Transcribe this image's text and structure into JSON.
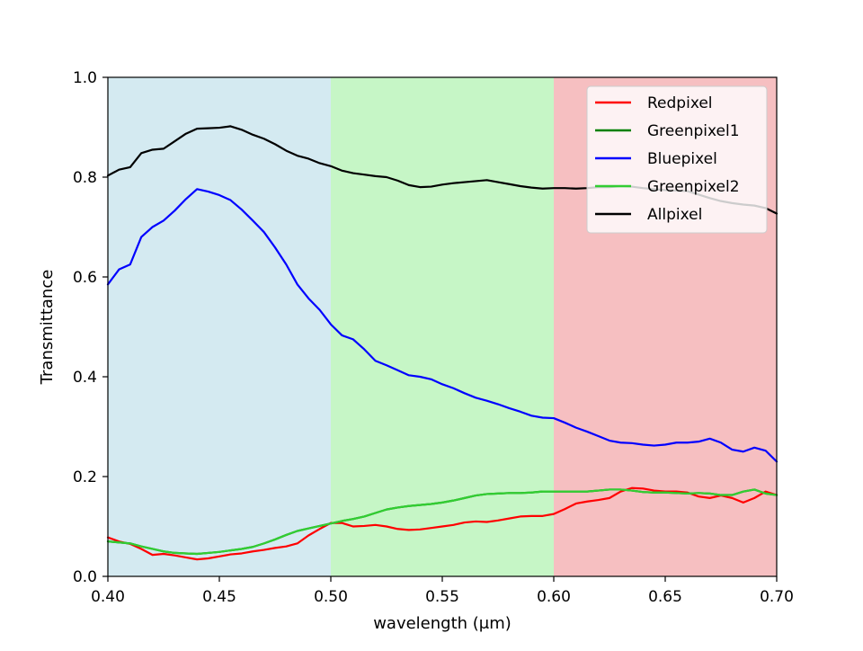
{
  "chart_data": {
    "type": "line",
    "title": "",
    "xlabel": "wavelength (μm)",
    "ylabel": "Transmittance",
    "xlim": [
      0.4,
      0.7
    ],
    "ylim": [
      0.0,
      1.0
    ],
    "xticks": [
      0.4,
      0.45,
      0.5,
      0.55,
      0.6,
      0.65,
      0.7
    ],
    "xtick_labels": [
      "0.40",
      "0.45",
      "0.50",
      "0.55",
      "0.60",
      "0.65",
      "0.70"
    ],
    "yticks": [
      0.0,
      0.2,
      0.4,
      0.6,
      0.8,
      1.0
    ],
    "ytick_labels": [
      "0.0",
      "0.2",
      "0.4",
      "0.6",
      "0.8",
      "1.0"
    ],
    "grid": false,
    "legend_position": "top-right",
    "bands": [
      {
        "x0": 0.4,
        "x1": 0.5,
        "color": "#d4eaf1"
      },
      {
        "x0": 0.5,
        "x1": 0.6,
        "color": "#c6f6c6"
      },
      {
        "x0": 0.6,
        "x1": 0.7,
        "color": "#f6bfc1"
      }
    ],
    "x": [
      0.4,
      0.405,
      0.41,
      0.415,
      0.42,
      0.425,
      0.43,
      0.435,
      0.44,
      0.445,
      0.45,
      0.455,
      0.46,
      0.465,
      0.47,
      0.475,
      0.48,
      0.485,
      0.49,
      0.495,
      0.5,
      0.505,
      0.51,
      0.515,
      0.52,
      0.525,
      0.53,
      0.535,
      0.54,
      0.545,
      0.55,
      0.555,
      0.56,
      0.565,
      0.57,
      0.575,
      0.58,
      0.585,
      0.59,
      0.595,
      0.6,
      0.605,
      0.61,
      0.615,
      0.62,
      0.625,
      0.63,
      0.635,
      0.64,
      0.645,
      0.65,
      0.655,
      0.66,
      0.665,
      0.67,
      0.675,
      0.68,
      0.685,
      0.69,
      0.695,
      0.7
    ],
    "series": [
      {
        "name": "Redpixel",
        "color": "#ff0000",
        "values": [
          0.078,
          0.07,
          0.065,
          0.055,
          0.043,
          0.045,
          0.042,
          0.038,
          0.034,
          0.036,
          0.04,
          0.044,
          0.046,
          0.05,
          0.053,
          0.057,
          0.06,
          0.066,
          0.082,
          0.095,
          0.107,
          0.107,
          0.1,
          0.101,
          0.103,
          0.1,
          0.095,
          0.093,
          0.094,
          0.097,
          0.1,
          0.103,
          0.108,
          0.11,
          0.109,
          0.112,
          0.116,
          0.12,
          0.121,
          0.121,
          0.125,
          0.135,
          0.146,
          0.15,
          0.153,
          0.157,
          0.17,
          0.177,
          0.176,
          0.172,
          0.17,
          0.17,
          0.168,
          0.16,
          0.157,
          0.162,
          0.157,
          0.148,
          0.157,
          0.17,
          0.163
        ]
      },
      {
        "name": "Greenpixel1",
        "color": "#008000",
        "values": [
          0.07,
          0.068,
          0.066,
          0.06,
          0.055,
          0.05,
          0.047,
          0.046,
          0.045,
          0.047,
          0.049,
          0.052,
          0.055,
          0.059,
          0.066,
          0.074,
          0.083,
          0.091,
          0.096,
          0.101,
          0.106,
          0.111,
          0.115,
          0.12,
          0.127,
          0.134,
          0.138,
          0.141,
          0.143,
          0.145,
          0.148,
          0.152,
          0.157,
          0.162,
          0.165,
          0.166,
          0.167,
          0.167,
          0.168,
          0.17,
          0.17,
          0.17,
          0.17,
          0.17,
          0.172,
          0.174,
          0.174,
          0.172,
          0.169,
          0.168,
          0.168,
          0.167,
          0.166,
          0.167,
          0.166,
          0.163,
          0.163,
          0.17,
          0.174,
          0.166,
          0.163
        ]
      },
      {
        "name": "Bluepixel",
        "color": "#0000ff",
        "values": [
          0.585,
          0.615,
          0.625,
          0.68,
          0.7,
          0.713,
          0.733,
          0.756,
          0.776,
          0.771,
          0.764,
          0.754,
          0.735,
          0.713,
          0.69,
          0.659,
          0.625,
          0.585,
          0.557,
          0.534,
          0.505,
          0.483,
          0.475,
          0.455,
          0.432,
          0.423,
          0.413,
          0.403,
          0.4,
          0.395,
          0.385,
          0.377,
          0.367,
          0.358,
          0.352,
          0.345,
          0.337,
          0.33,
          0.322,
          0.318,
          0.317,
          0.308,
          0.298,
          0.29,
          0.281,
          0.272,
          0.268,
          0.267,
          0.264,
          0.262,
          0.264,
          0.268,
          0.268,
          0.27,
          0.276,
          0.268,
          0.254,
          0.25,
          0.258,
          0.252,
          0.23
        ]
      },
      {
        "name": "Greenpixel2",
        "color": "#32cd32",
        "values": [
          0.07,
          0.068,
          0.066,
          0.06,
          0.055,
          0.05,
          0.047,
          0.046,
          0.045,
          0.047,
          0.049,
          0.052,
          0.055,
          0.059,
          0.066,
          0.074,
          0.083,
          0.091,
          0.096,
          0.101,
          0.106,
          0.111,
          0.115,
          0.12,
          0.127,
          0.134,
          0.138,
          0.141,
          0.143,
          0.145,
          0.148,
          0.152,
          0.157,
          0.162,
          0.165,
          0.166,
          0.167,
          0.167,
          0.168,
          0.17,
          0.17,
          0.17,
          0.17,
          0.17,
          0.172,
          0.174,
          0.174,
          0.172,
          0.169,
          0.168,
          0.168,
          0.167,
          0.166,
          0.167,
          0.166,
          0.163,
          0.163,
          0.17,
          0.174,
          0.166,
          0.163
        ]
      },
      {
        "name": "Allpixel",
        "color": "#000000",
        "values": [
          0.803,
          0.815,
          0.82,
          0.848,
          0.855,
          0.857,
          0.872,
          0.887,
          0.897,
          0.898,
          0.899,
          0.902,
          0.895,
          0.885,
          0.877,
          0.866,
          0.853,
          0.843,
          0.837,
          0.828,
          0.822,
          0.813,
          0.808,
          0.805,
          0.802,
          0.8,
          0.793,
          0.784,
          0.78,
          0.781,
          0.785,
          0.788,
          0.79,
          0.792,
          0.794,
          0.79,
          0.786,
          0.782,
          0.779,
          0.777,
          0.778,
          0.778,
          0.777,
          0.778,
          0.78,
          0.78,
          0.782,
          0.781,
          0.778,
          0.776,
          0.774,
          0.773,
          0.772,
          0.765,
          0.758,
          0.752,
          0.748,
          0.745,
          0.743,
          0.738,
          0.727
        ]
      }
    ]
  }
}
